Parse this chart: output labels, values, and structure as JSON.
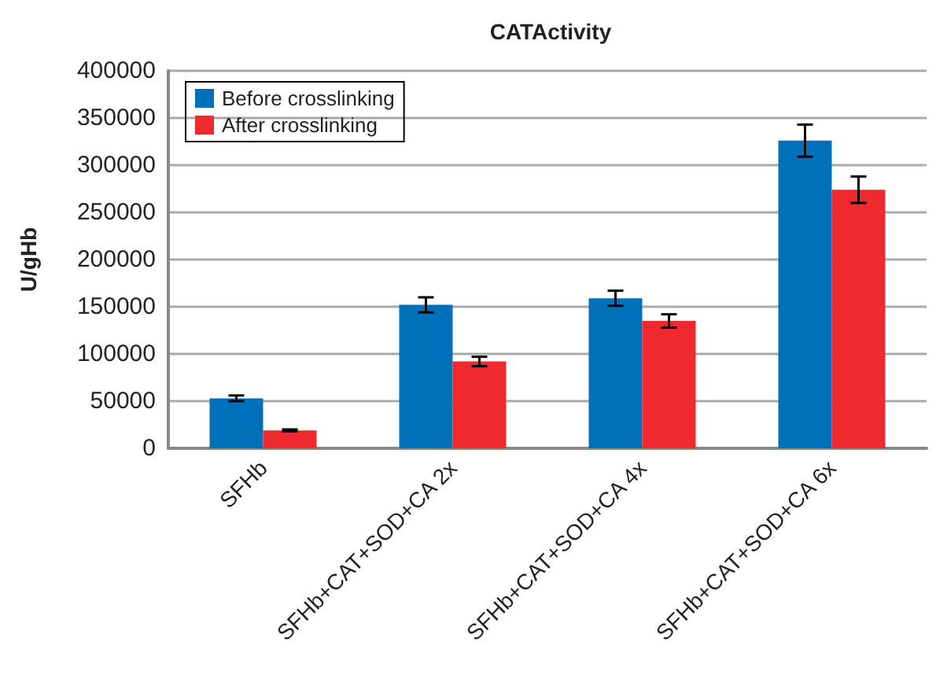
{
  "chart_data": {
    "type": "bar",
    "title": "CATActivity",
    "ylabel": "U/gHb",
    "categories": [
      "SFHb",
      "SFHb+CAT+SOD+CA 2x",
      "SFHb+CAT+SOD+CA 4x",
      "SFHb+CAT+SOD+CA 6x"
    ],
    "series": [
      {
        "name": "Before crosslinking",
        "color": "#0070bb",
        "values": [
          53000,
          152000,
          159000,
          326000
        ],
        "errors": [
          3000,
          8000,
          8000,
          17000
        ]
      },
      {
        "name": "After crosslinking",
        "color": "#ee2a2f",
        "values": [
          19000,
          92000,
          135000,
          274000
        ],
        "errors": [
          1000,
          5000,
          7000,
          14000
        ]
      }
    ],
    "ylim": [
      0,
      400000
    ],
    "yticks": [
      0,
      50000,
      100000,
      150000,
      200000,
      250000,
      300000,
      350000,
      400000
    ],
    "grid": "y",
    "legend": "top left"
  }
}
